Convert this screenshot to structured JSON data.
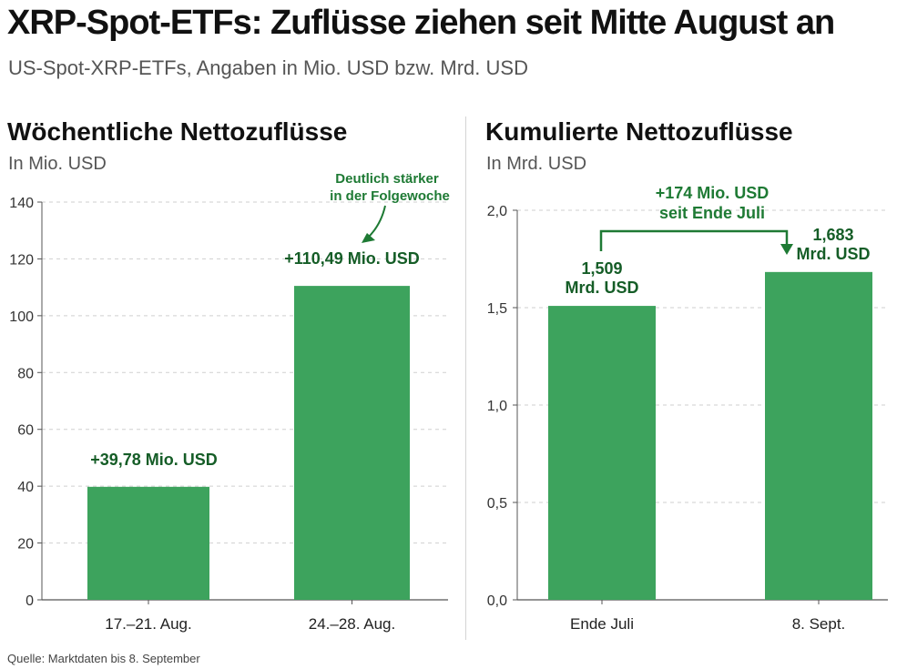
{
  "title": "XRP-Spot-ETFs: Zuflüsse ziehen seit Mitte August an",
  "subtitle": "US-Spot-XRP-ETFs, Angaben in Mio. USD bzw. Mrd. USD",
  "source": "Quelle: Marktdaten bis 8. September",
  "colors": {
    "bar": "#3da35d",
    "label": "#155d27",
    "annotation": "#1e7a34",
    "grid": "#cfcfcf",
    "axis": "#555555"
  },
  "chart_data": [
    {
      "type": "bar",
      "title": "Wöchentliche Nettozuflüsse",
      "ylabel": "In Mio. USD",
      "categories": [
        "17.–21. Aug.",
        "24.–28. Aug."
      ],
      "values": [
        39.78,
        110.49
      ],
      "data_labels": [
        "+39,78 Mio. USD",
        "+110,49 Mio. USD"
      ],
      "ylim": [
        0,
        140
      ],
      "yticks": [
        0,
        20,
        40,
        60,
        80,
        100,
        120,
        140
      ],
      "ytick_labels": [
        "0",
        "20",
        "40",
        "60",
        "80",
        "100",
        "120",
        "140"
      ],
      "grid": true,
      "annotation": {
        "lines": [
          "Deutlich stärker",
          "in der Folgewoche"
        ],
        "target": "24.–28. Aug."
      }
    },
    {
      "type": "bar",
      "title": "Kumulierte Nettozuflüsse",
      "ylabel": "In Mrd. USD",
      "categories": [
        "Ende Juli",
        "8. Sept."
      ],
      "values": [
        1.509,
        1.683
      ],
      "data_labels": [
        [
          "1,509",
          "Mrd. USD"
        ],
        [
          "1,683",
          "Mrd. USD"
        ]
      ],
      "ylim": [
        0,
        2.0
      ],
      "yticks": [
        0,
        0.5,
        1.0,
        1.5,
        2.0
      ],
      "ytick_labels": [
        "0,0",
        "0,5",
        "1,0",
        "1,5",
        "2,0"
      ],
      "grid": true,
      "annotation": {
        "lines": [
          "+174 Mio. USD",
          "seit Ende Juli"
        ],
        "from": "Ende Juli",
        "to": "8. Sept."
      }
    }
  ]
}
